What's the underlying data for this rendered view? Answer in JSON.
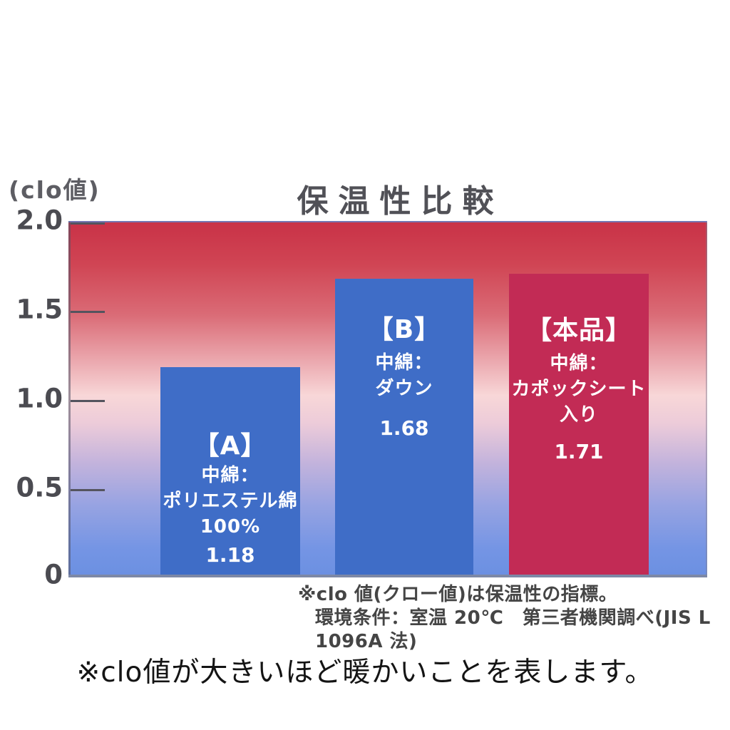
{
  "chart": {
    "unit_label": "(clo値)",
    "title": "保温性比較"
  },
  "chart_data": {
    "type": "bar",
    "title": "保温性比較",
    "ylabel": "(clo値)",
    "ylim": [
      0,
      2.0
    ],
    "ytick_labels": [
      "2.0",
      "1.5",
      "1.0",
      "0.5",
      "0"
    ],
    "grid": false,
    "legend_position": "none",
    "background_gradient": {
      "top": "#c93247",
      "middle": "#f8d7d8",
      "bottom": "#6b90e2"
    },
    "baseline_color": "#7d88a6",
    "categories": [
      "【A】 中綿：ポリエステル綿100%",
      "【B】 中綿：ダウン",
      "【本品】 中綿：カポックシート入り"
    ],
    "values": [
      1.18,
      1.68,
      1.71
    ],
    "bars": [
      {
        "tag": "【A】",
        "desc_lines": [
          "中綿：",
          "ポリエステル綿",
          "100%"
        ],
        "value": 1.18,
        "value_label": "1.18",
        "color": "#3f6dc7"
      },
      {
        "tag": "【B】",
        "desc_lines": [
          "中綿：",
          "ダウン"
        ],
        "value": 1.68,
        "value_label": "1.68",
        "color": "#3f6dc7"
      },
      {
        "tag": "【本品】",
        "desc_lines": [
          "中綿：",
          "カポックシート",
          "入り"
        ],
        "value": 1.71,
        "value_label": "1.71",
        "color": "#c22b55"
      }
    ]
  },
  "footnotes": {
    "line1": "※clo 値(クロー値)は保温性の指標。",
    "line2": "環境条件：室温 20℃　第三者機関調べ(JIS L 1096A 法)"
  },
  "caption": "※clo値が大きいほど暖かいことを表します。"
}
